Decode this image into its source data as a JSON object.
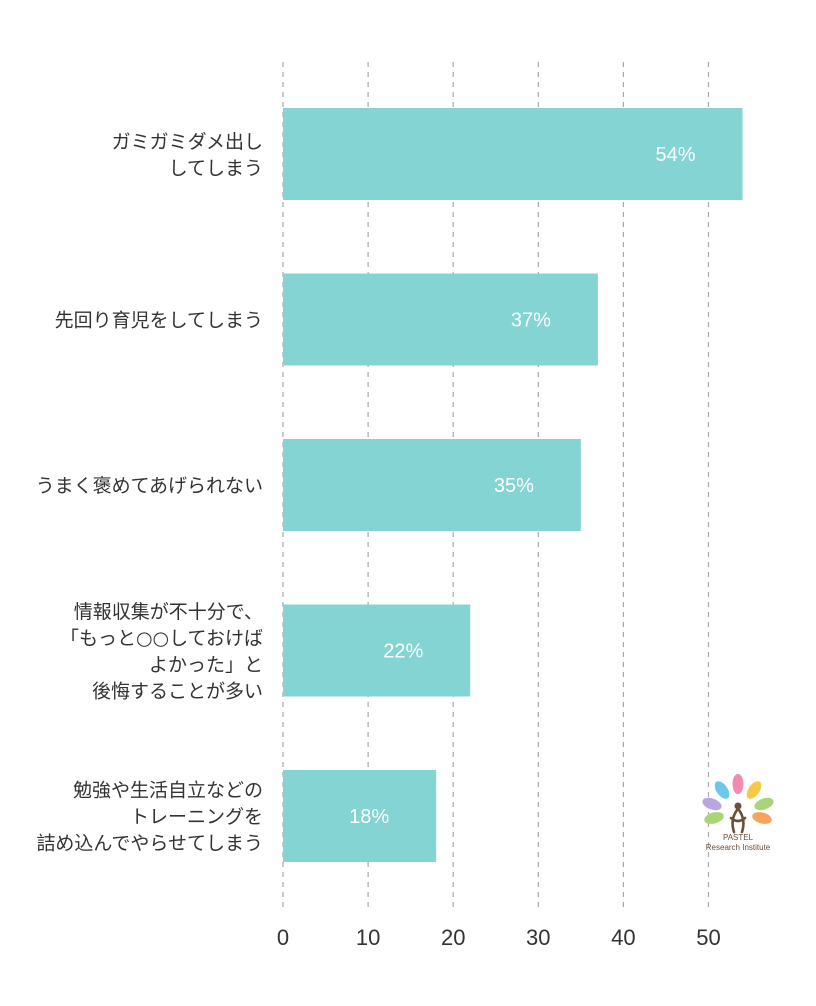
{
  "chart_data": {
    "type": "bar",
    "orientation": "horizontal",
    "categories": [
      [
        "ガミガミダメ出し",
        "してしまう"
      ],
      [
        "先回り育児をしてしまう"
      ],
      [
        "うまく褒めてあげられない"
      ],
      [
        "情報収集が不十分で、",
        "「もっと○○しておけば",
        "よかった」と",
        "後悔することが多い"
      ],
      [
        "勉強や生活自立などの",
        "トレーニングを",
        "詰め込んでやらせてしまう"
      ]
    ],
    "values": [
      54,
      37,
      35,
      22,
      18
    ],
    "data_labels": [
      "54%",
      "37%",
      "35%",
      "22%",
      "18%"
    ],
    "xlim": [
      0,
      50
    ],
    "xticks": [
      0,
      10,
      20,
      30,
      40,
      50
    ],
    "grid": true,
    "bar_color": "#84d4d3"
  },
  "logo": {
    "line1": "PASTEL",
    "line2": "Research Institute",
    "petal_colors": [
      "#f28bb0",
      "#f7c948",
      "#a7d676",
      "#b7a6e0",
      "#6cc7e8",
      "#f7a35c"
    ]
  }
}
